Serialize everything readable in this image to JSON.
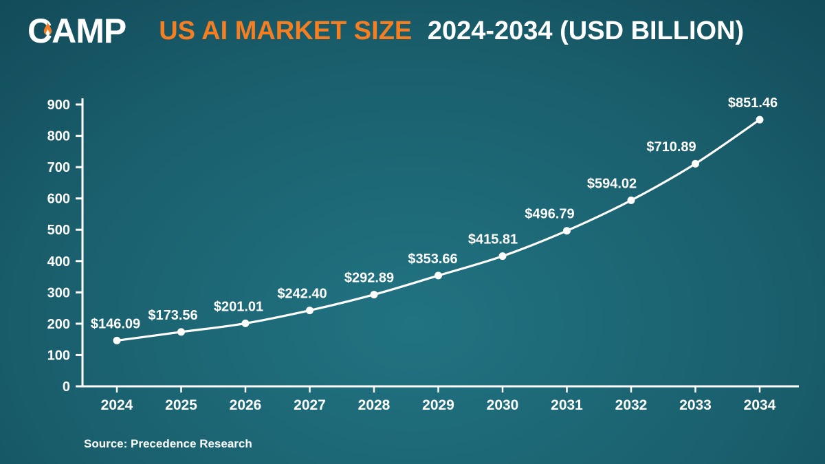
{
  "header": {
    "logo_text": "CAMP",
    "title_highlight": "US AI MARKET SIZE",
    "title_rest": "2024-2034 (USD BILLION)"
  },
  "footer": {
    "source": "Source: Precedence Research"
  },
  "colors": {
    "accent_orange": "#f47f23",
    "text_white": "#ffffff",
    "background_dark": "#0d3a48",
    "background_light": "#217382",
    "line": "#ffffff"
  },
  "chart_data": {
    "type": "line",
    "title": "US AI MARKET SIZE 2024-2034 (USD BILLION)",
    "categories": [
      "2024",
      "2025",
      "2026",
      "2027",
      "2028",
      "2029",
      "2030",
      "2031",
      "2032",
      "2033",
      "2034"
    ],
    "values": [
      146.09,
      173.56,
      201.01,
      242.4,
      292.89,
      353.66,
      415.81,
      496.79,
      594.02,
      710.89,
      851.46
    ],
    "point_labels": [
      "$146.09",
      "$173.56",
      "$201.01",
      "$242.40",
      "$292.89",
      "$353.66",
      "$415.81",
      "$496.79",
      "$594.02",
      "$710.89",
      "$851.46"
    ],
    "xlabel": "",
    "ylabel": "",
    "ylim": [
      0,
      900
    ],
    "yticks": [
      0,
      100,
      200,
      300,
      400,
      500,
      600,
      700,
      800,
      900
    ],
    "grid": false,
    "legend": "none",
    "line_color": "#ffffff",
    "marker": "circle"
  }
}
